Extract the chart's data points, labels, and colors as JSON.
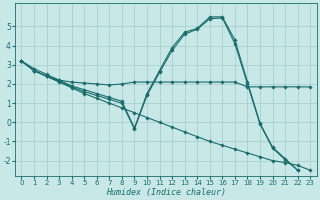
{
  "xlabel": "Humidex (Indice chaleur)",
  "bg_color": "#c8e8e8",
  "line_color": "#1a6b6b",
  "grid_color": "#a8d0d0",
  "xlim": [
    -0.5,
    23.5
  ],
  "ylim": [
    -2.8,
    6.2
  ],
  "xticks": [
    0,
    1,
    2,
    3,
    4,
    5,
    6,
    7,
    8,
    9,
    10,
    11,
    12,
    13,
    14,
    15,
    16,
    17,
    18,
    19,
    20,
    21,
    22,
    23
  ],
  "yticks": [
    -2,
    -1,
    0,
    1,
    2,
    3,
    4,
    5
  ],
  "lines": [
    {
      "x": [
        0,
        1,
        2,
        3,
        4,
        5,
        6,
        7,
        8,
        9,
        10,
        11,
        12,
        13,
        14,
        15,
        16,
        17,
        18,
        19,
        20,
        21,
        22,
        23
      ],
      "y": [
        3.2,
        2.8,
        2.5,
        2.2,
        2.1,
        2.05,
        2.0,
        1.95,
        2.0,
        2.1,
        2.1,
        2.1,
        2.1,
        2.1,
        2.1,
        2.1,
        2.1,
        2.1,
        1.85,
        1.85,
        1.85,
        1.85,
        1.85,
        1.85
      ]
    },
    {
      "x": [
        0,
        1,
        2,
        3,
        4,
        5,
        6,
        7,
        8,
        9,
        10,
        11,
        12,
        13,
        14,
        15,
        16,
        17,
        18,
        19,
        20,
        21,
        22,
        23
      ],
      "y": [
        3.2,
        2.7,
        2.4,
        2.1,
        1.8,
        1.5,
        1.25,
        1.0,
        0.75,
        0.5,
        0.25,
        0.0,
        -0.25,
        -0.5,
        -0.75,
        -1.0,
        -1.2,
        -1.4,
        -1.6,
        -1.8,
        -2.0,
        -2.1,
        -2.25,
        -2.5
      ]
    },
    {
      "x": [
        0,
        1,
        2,
        3,
        4,
        5,
        6,
        7,
        8,
        9,
        10,
        11,
        12,
        13,
        14,
        15,
        16,
        17,
        18,
        19,
        20,
        21,
        22,
        23
      ],
      "y": [
        3.2,
        2.7,
        2.4,
        2.2,
        1.9,
        1.7,
        1.5,
        1.3,
        1.1,
        -0.3,
        1.5,
        2.7,
        3.9,
        4.7,
        4.9,
        5.5,
        5.5,
        4.3,
        2.1,
        -0.05,
        -1.3,
        -1.9,
        -2.5,
        null
      ]
    },
    {
      "x": [
        0,
        1,
        2,
        3,
        4,
        5,
        6,
        7,
        8,
        9,
        10,
        11,
        12,
        13,
        14,
        15,
        16,
        17,
        18,
        19,
        20,
        21,
        22,
        23
      ],
      "y": [
        3.2,
        2.7,
        2.4,
        2.15,
        1.85,
        1.6,
        1.4,
        1.2,
        1.0,
        -0.35,
        1.4,
        2.6,
        3.75,
        4.6,
        4.85,
        5.4,
        5.45,
        4.1,
        2.0,
        -0.1,
        -1.35,
        -1.95,
        -2.5,
        null
      ]
    }
  ]
}
